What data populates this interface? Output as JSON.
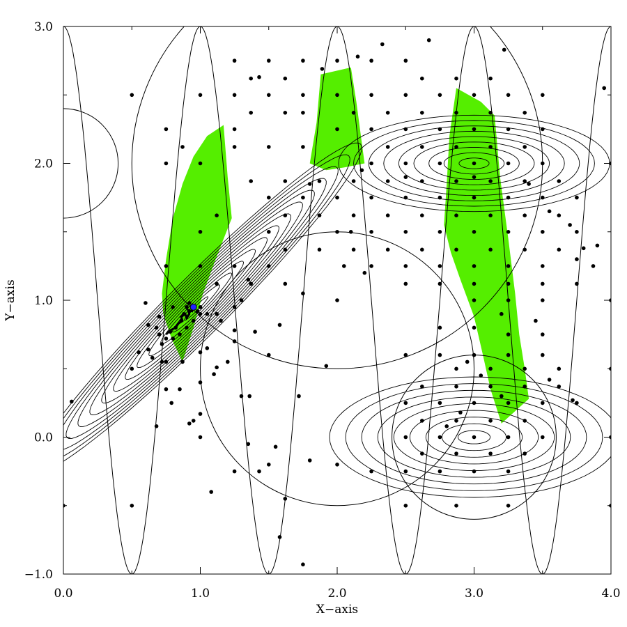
{
  "chart_data": {
    "type": "scatter",
    "title": "",
    "xlabel": "X−axis",
    "ylabel": "Y−axis",
    "xlim": [
      0.0,
      4.0
    ],
    "ylim": [
      -1.0,
      3.0
    ],
    "grid": false,
    "x_ticks": [
      0.0,
      1.0,
      2.0,
      3.0,
      4.0
    ],
    "x_tick_labels": [
      "0.0",
      "1.0",
      "2.0",
      "3.0",
      "4.0"
    ],
    "y_ticks": [
      -1.0,
      0.0,
      1.0,
      2.0,
      3.0
    ],
    "y_tick_labels": [
      "−1.0",
      "0.0",
      "1.0",
      "2.0",
      "3.0"
    ],
    "colors": {
      "fill_region": "#55ee00",
      "points": "#000000",
      "contours": "#000000",
      "marker": "#2222ff"
    },
    "gaussian_contours": [
      {
        "center": [
          0.97,
          0.94
        ],
        "sx": 0.55,
        "sy": 0.55,
        "rho": 0.97,
        "levels": 14
      },
      {
        "center": [
          3.0,
          2.0
        ],
        "sx": 0.45,
        "sy": 0.16,
        "rho": 0.0,
        "levels": 9
      },
      {
        "center": [
          3.0,
          0.0
        ],
        "sx": 0.48,
        "sy": 0.2,
        "rho": 0.0,
        "levels": 9
      }
    ],
    "sinusoid": {
      "period": 1.0,
      "peak_x": 0.5,
      "min": -1.0,
      "max": 3.0
    },
    "circles": [
      {
        "center": [
          0.0,
          2.0
        ],
        "r": 0.4
      },
      {
        "center": [
          2.0,
          2.0
        ],
        "r": 1.5
      },
      {
        "center": [
          2.0,
          0.5
        ],
        "r": 1.0
      },
      {
        "center": [
          3.0,
          0.0
        ],
        "r": 0.6
      }
    ],
    "green_regions": [
      [
        [
          0.72,
          1.05
        ],
        [
          0.75,
          1.3
        ],
        [
          0.8,
          1.6
        ],
        [
          0.87,
          1.85
        ],
        [
          0.95,
          2.05
        ],
        [
          1.05,
          2.2
        ],
        [
          1.17,
          2.28
        ],
        [
          1.2,
          1.9
        ],
        [
          1.23,
          1.6
        ],
        [
          1.12,
          1.32
        ],
        [
          1.02,
          1.05
        ],
        [
          0.95,
          0.8
        ],
        [
          0.87,
          0.55
        ],
        [
          0.79,
          0.72
        ],
        [
          0.73,
          0.9
        ]
      ],
      [
        [
          1.8,
          2.0
        ],
        [
          1.85,
          2.3
        ],
        [
          1.88,
          2.65
        ],
        [
          2.1,
          2.7
        ],
        [
          2.14,
          2.45
        ],
        [
          2.2,
          2.0
        ],
        [
          2.05,
          1.97
        ],
        [
          1.92,
          1.95
        ]
      ],
      [
        [
          2.78,
          1.55
        ],
        [
          2.8,
          1.85
        ],
        [
          2.82,
          2.2
        ],
        [
          2.87,
          2.55
        ],
        [
          3.05,
          2.45
        ],
        [
          3.15,
          2.35
        ],
        [
          3.19,
          1.9
        ],
        [
          3.25,
          1.45
        ],
        [
          3.3,
          1.05
        ],
        [
          3.33,
          0.75
        ],
        [
          3.37,
          0.5
        ],
        [
          3.4,
          0.28
        ],
        [
          3.2,
          0.1
        ],
        [
          3.12,
          0.35
        ],
        [
          3.06,
          0.62
        ],
        [
          3.0,
          0.88
        ],
        [
          2.9,
          1.15
        ],
        [
          2.83,
          1.35
        ]
      ]
    ],
    "marker_point": [
      0.95,
      0.95
    ],
    "points": [
      [
        0.5,
        2.5
      ],
      [
        1.0,
        2.5
      ],
      [
        1.0,
        2.0
      ],
      [
        1.0,
        1.5
      ],
      [
        1.5,
        2.5
      ],
      [
        2.0,
        2.5
      ],
      [
        1.5,
        1.5
      ],
      [
        1.25,
        2.75
      ],
      [
        1.5,
        2.75
      ],
      [
        1.75,
        2.75
      ],
      [
        2.0,
        2.75
      ],
      [
        1.25,
        2.5
      ],
      [
        2.25,
        2.75
      ],
      [
        2.5,
        2.75
      ],
      [
        2.75,
        2.5
      ],
      [
        3.0,
        2.5
      ],
      [
        3.25,
        2.5
      ],
      [
        3.5,
        2.5
      ],
      [
        2.5,
        2.5
      ],
      [
        2.25,
        2.5
      ],
      [
        1.62,
        2.62
      ],
      [
        1.37,
        2.62
      ],
      [
        2.62,
        2.62
      ],
      [
        2.87,
        2.62
      ],
      [
        3.12,
        2.62
      ],
      [
        2.33,
        2.87
      ],
      [
        2.67,
        2.9
      ],
      [
        3.22,
        2.83
      ],
      [
        2.15,
        2.78
      ],
      [
        1.89,
        2.69
      ],
      [
        1.43,
        2.63
      ],
      [
        1.62,
        2.37
      ],
      [
        1.37,
        2.37
      ],
      [
        1.75,
        2.37
      ],
      [
        2.12,
        2.37
      ],
      [
        2.37,
        2.37
      ],
      [
        2.62,
        2.37
      ],
      [
        2.87,
        2.37
      ],
      [
        3.12,
        2.37
      ],
      [
        3.37,
        2.37
      ],
      [
        1.75,
        2.12
      ],
      [
        1.5,
        2.12
      ],
      [
        1.25,
        2.12
      ],
      [
        0.87,
        2.12
      ],
      [
        0.75,
        2.25
      ],
      [
        0.75,
        2.0
      ],
      [
        1.25,
        2.25
      ],
      [
        2.0,
        2.25
      ],
      [
        2.25,
        2.25
      ],
      [
        2.5,
        2.25
      ],
      [
        2.75,
        2.25
      ],
      [
        3.0,
        2.25
      ],
      [
        3.25,
        2.25
      ],
      [
        3.5,
        2.25
      ],
      [
        1.75,
        2.5
      ],
      [
        2.37,
        2.12
      ],
      [
        2.62,
        2.12
      ],
      [
        2.87,
        2.12
      ],
      [
        3.12,
        2.12
      ],
      [
        3.37,
        2.12
      ],
      [
        1.87,
        1.87
      ],
      [
        2.12,
        1.87
      ],
      [
        2.37,
        1.87
      ],
      [
        2.62,
        1.87
      ],
      [
        2.87,
        1.87
      ],
      [
        3.12,
        1.87
      ],
      [
        3.37,
        1.87
      ],
      [
        3.62,
        1.87
      ],
      [
        1.62,
        1.87
      ],
      [
        1.37,
        1.87
      ],
      [
        2.25,
        2.0
      ],
      [
        2.5,
        2.0
      ],
      [
        2.75,
        2.0
      ],
      [
        3.0,
        2.0
      ],
      [
        3.25,
        2.0
      ],
      [
        3.5,
        2.0
      ],
      [
        2.0,
        1.75
      ],
      [
        2.25,
        1.75
      ],
      [
        2.5,
        1.75
      ],
      [
        2.75,
        1.75
      ],
      [
        3.0,
        1.75
      ],
      [
        3.25,
        1.75
      ],
      [
        3.5,
        1.75
      ],
      [
        3.75,
        1.75
      ],
      [
        1.75,
        1.75
      ],
      [
        1.5,
        1.75
      ],
      [
        2.12,
        1.62
      ],
      [
        2.37,
        1.62
      ],
      [
        2.62,
        1.62
      ],
      [
        2.87,
        1.62
      ],
      [
        3.12,
        1.62
      ],
      [
        3.37,
        1.62
      ],
      [
        3.62,
        1.62
      ],
      [
        1.87,
        1.62
      ],
      [
        1.62,
        1.62
      ],
      [
        1.12,
        1.62
      ],
      [
        2.0,
        1.5
      ],
      [
        2.25,
        1.5
      ],
      [
        2.5,
        1.5
      ],
      [
        2.75,
        1.5
      ],
      [
        3.0,
        1.5
      ],
      [
        3.25,
        1.5
      ],
      [
        3.5,
        1.5
      ],
      [
        3.75,
        1.5
      ],
      [
        1.62,
        1.37
      ],
      [
        1.87,
        1.37
      ],
      [
        2.12,
        1.37
      ],
      [
        2.37,
        1.37
      ],
      [
        2.62,
        1.37
      ],
      [
        2.87,
        1.37
      ],
      [
        3.12,
        1.37
      ],
      [
        3.37,
        1.37
      ],
      [
        3.62,
        1.37
      ],
      [
        3.87,
        1.25
      ],
      [
        3.75,
        1.3
      ],
      [
        3.5,
        1.25
      ],
      [
        3.25,
        1.25
      ],
      [
        3.0,
        1.25
      ],
      [
        2.75,
        1.25
      ],
      [
        2.5,
        1.25
      ],
      [
        2.25,
        1.25
      ],
      [
        1.25,
        1.25
      ],
      [
        1.0,
        1.25
      ],
      [
        0.75,
        1.25
      ],
      [
        1.5,
        1.25
      ],
      [
        1.37,
        1.12
      ],
      [
        1.12,
        1.12
      ],
      [
        1.62,
        1.12
      ],
      [
        2.5,
        1.12
      ],
      [
        2.75,
        1.12
      ],
      [
        3.0,
        1.12
      ],
      [
        3.25,
        1.12
      ],
      [
        3.5,
        1.12
      ],
      [
        3.75,
        1.12
      ],
      [
        1.75,
        1.05
      ],
      [
        2.0,
        1.0
      ],
      [
        0.6,
        0.98
      ],
      [
        3.0,
        1.0
      ],
      [
        3.25,
        1.0
      ],
      [
        3.5,
        1.0
      ],
      [
        3.2,
        0.9
      ],
      [
        3.45,
        0.85
      ],
      [
        2.75,
        0.8
      ],
      [
        3.0,
        0.8
      ],
      [
        3.25,
        0.75
      ],
      [
        3.5,
        0.75
      ],
      [
        2.5,
        0.6
      ],
      [
        2.75,
        0.6
      ],
      [
        3.0,
        0.6
      ],
      [
        3.25,
        0.6
      ],
      [
        3.5,
        0.6
      ],
      [
        3.62,
        0.5
      ],
      [
        2.87,
        0.5
      ],
      [
        3.12,
        0.5
      ],
      [
        3.37,
        0.5
      ],
      [
        2.62,
        0.37
      ],
      [
        2.87,
        0.37
      ],
      [
        3.12,
        0.37
      ],
      [
        3.37,
        0.37
      ],
      [
        3.62,
        0.37
      ],
      [
        3.75,
        0.25
      ],
      [
        3.5,
        0.25
      ],
      [
        3.25,
        0.25
      ],
      [
        3.0,
        0.25
      ],
      [
        2.75,
        0.25
      ],
      [
        2.5,
        0.25
      ],
      [
        2.62,
        0.12
      ],
      [
        2.87,
        0.12
      ],
      [
        3.12,
        0.12
      ],
      [
        3.37,
        0.12
      ],
      [
        2.5,
        0.0
      ],
      [
        2.75,
        0.0
      ],
      [
        3.0,
        0.0
      ],
      [
        3.25,
        0.0
      ],
      [
        3.5,
        0.0
      ],
      [
        2.62,
        -0.12
      ],
      [
        2.87,
        -0.12
      ],
      [
        3.12,
        -0.12
      ],
      [
        3.37,
        -0.12
      ],
      [
        2.5,
        -0.25
      ],
      [
        2.75,
        -0.25
      ],
      [
        3.0,
        -0.25
      ],
      [
        3.25,
        -0.25
      ],
      [
        2.25,
        -0.25
      ],
      [
        2.5,
        -0.5
      ],
      [
        2.87,
        -0.5
      ],
      [
        3.25,
        -0.5
      ],
      [
        2.0,
        -0.2
      ],
      [
        1.8,
        -0.17
      ],
      [
        1.5,
        -0.2
      ],
      [
        1.25,
        -0.25
      ],
      [
        1.35,
        -0.05
      ],
      [
        1.55,
        -0.07
      ],
      [
        1.62,
        -0.45
      ],
      [
        1.43,
        -0.25
      ],
      [
        1.0,
        -0.0
      ],
      [
        1.08,
        -0.4
      ],
      [
        1.58,
        -0.73
      ],
      [
        1.75,
        -0.93
      ],
      [
        0.5,
        -0.5
      ],
      [
        0.95,
        0.12
      ],
      [
        1.0,
        0.17
      ],
      [
        0.92,
        0.1
      ],
      [
        0.75,
        0.35
      ],
      [
        0.79,
        0.25
      ],
      [
        0.68,
        0.08
      ],
      [
        1.0,
        0.4
      ],
      [
        1.1,
        0.46
      ],
      [
        1.3,
        0.3
      ],
      [
        1.36,
        0.3
      ],
      [
        0.85,
        0.35
      ],
      [
        0.06,
        0.26
      ],
      [
        0.5,
        0.5
      ],
      [
        0.72,
        0.55
      ],
      [
        0.75,
        0.55
      ],
      [
        0.87,
        0.55
      ],
      [
        1.12,
        0.51
      ],
      [
        0.65,
        0.58
      ],
      [
        0.62,
        0.64
      ],
      [
        0.55,
        0.62
      ],
      [
        0.72,
        0.68
      ],
      [
        0.8,
        0.72
      ],
      [
        0.85,
        0.75
      ],
      [
        0.9,
        0.8
      ],
      [
        0.95,
        0.85
      ],
      [
        1.0,
        0.9
      ],
      [
        0.92,
        0.92
      ],
      [
        0.88,
        0.9
      ],
      [
        0.86,
        0.85
      ],
      [
        0.82,
        0.8
      ],
      [
        0.78,
        0.77
      ],
      [
        0.75,
        0.72
      ],
      [
        0.7,
        0.75
      ],
      [
        0.68,
        0.8
      ],
      [
        0.7,
        0.88
      ],
      [
        0.62,
        0.82
      ],
      [
        0.8,
        0.95
      ],
      [
        0.9,
        0.95
      ],
      [
        0.95,
        0.95
      ],
      [
        0.92,
        0.98
      ],
      [
        0.98,
        0.92
      ],
      [
        1.0,
        0.95
      ],
      [
        1.05,
        0.9
      ],
      [
        1.12,
        0.9
      ],
      [
        1.15,
        0.85
      ],
      [
        1.25,
        0.95
      ],
      [
        1.3,
        1.0
      ],
      [
        1.35,
        1.15
      ],
      [
        1.25,
        0.78
      ],
      [
        1.05,
        0.65
      ],
      [
        1.0,
        0.62
      ],
      [
        1.2,
        0.55
      ],
      [
        1.5,
        0.6
      ],
      [
        1.25,
        0.7
      ],
      [
        1.4,
        0.77
      ],
      [
        1.58,
        0.82
      ],
      [
        1.72,
        0.3
      ],
      [
        1.92,
        0.52
      ],
      [
        2.1,
        1.5
      ],
      [
        2.05,
        1.25
      ],
      [
        2.2,
        1.2
      ],
      [
        1.8,
        1.85
      ],
      [
        2.18,
        1.95
      ],
      [
        2.5,
        1.9
      ],
      [
        3.0,
        1.9
      ],
      [
        3.4,
        1.85
      ],
      [
        3.55,
        1.65
      ],
      [
        3.7,
        1.55
      ],
      [
        3.8,
        1.38
      ],
      [
        3.9,
        1.4
      ],
      [
        3.95,
        2.55
      ],
      [
        4.0,
        2.0
      ],
      [
        4.0,
        1.0
      ],
      [
        4.0,
        0.5
      ],
      [
        4.0,
        0.0
      ],
      [
        4.0,
        -0.5
      ],
      [
        0.0,
        -0.5
      ],
      [
        3.72,
        0.27
      ],
      [
        3.55,
        0.42
      ],
      [
        2.95,
        0.55
      ],
      [
        3.05,
        0.45
      ],
      [
        3.2,
        0.3
      ],
      [
        2.9,
        0.18
      ],
      [
        2.8,
        0.08
      ]
    ],
    "walk_path": [
      [
        0.75,
        0.75
      ],
      [
        0.78,
        0.78
      ],
      [
        0.82,
        0.8
      ],
      [
        0.84,
        0.83
      ],
      [
        0.87,
        0.85
      ],
      [
        0.86,
        0.88
      ],
      [
        0.89,
        0.9
      ],
      [
        0.9,
        0.87
      ],
      [
        0.92,
        0.9
      ],
      [
        0.91,
        0.93
      ],
      [
        0.94,
        0.92
      ],
      [
        0.95,
        0.95
      ]
    ]
  }
}
